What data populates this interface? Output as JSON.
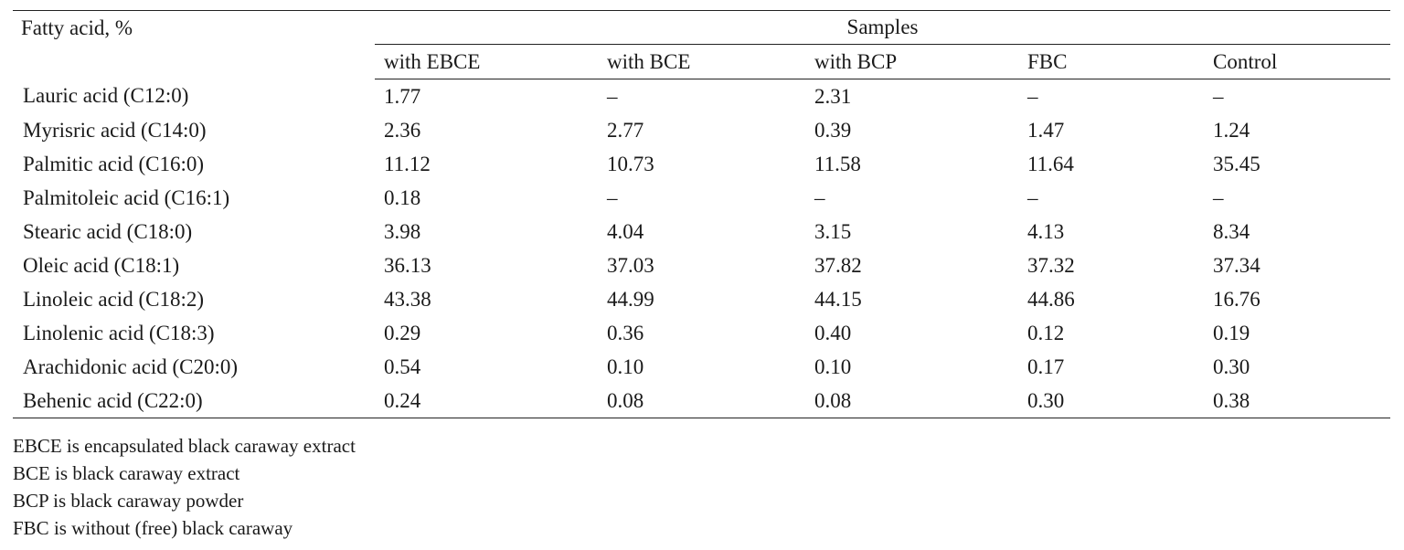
{
  "table": {
    "corner_header": "Fatty acid, %",
    "group_header": "Samples",
    "columns": [
      "with EBCE",
      "with BCE",
      "with BCP",
      "FBC",
      "Control"
    ],
    "rows": [
      {
        "name": "Lauric acid (C12:0)",
        "values": [
          "1.77",
          "–",
          "2.31",
          "–",
          "–"
        ]
      },
      {
        "name": "Myrisric acid (C14:0)",
        "values": [
          "2.36",
          "2.77",
          "0.39",
          "1.47",
          "1.24"
        ]
      },
      {
        "name": "Palmitic acid (C16:0)",
        "values": [
          "11.12",
          "10.73",
          "11.58",
          "11.64",
          "35.45"
        ]
      },
      {
        "name": "Palmitoleic acid (C16:1)",
        "values": [
          "0.18",
          "–",
          "–",
          "–",
          "–"
        ]
      },
      {
        "name": "Stearic acid (C18:0)",
        "values": [
          "3.98",
          "4.04",
          "3.15",
          "4.13",
          "8.34"
        ]
      },
      {
        "name": "Oleic acid (C18:1)",
        "values": [
          "36.13",
          "37.03",
          "37.82",
          "37.32",
          "37.34"
        ]
      },
      {
        "name": "Linoleic acid (C18:2)",
        "values": [
          "43.38",
          "44.99",
          "44.15",
          "44.86",
          "16.76"
        ]
      },
      {
        "name": "Linolenic acid (C18:3)",
        "values": [
          "0.29",
          "0.36",
          "0.40",
          "0.12",
          "0.19"
        ]
      },
      {
        "name": "Arachidonic acid (C20:0)",
        "values": [
          "0.54",
          "0.10",
          "0.10",
          "0.17",
          "0.30"
        ]
      },
      {
        "name": "Behenic acid (C22:0)",
        "values": [
          "0.24",
          "0.08",
          "0.08",
          "0.30",
          "0.38"
        ]
      }
    ]
  },
  "notes": [
    "EBCE is encapsulated black caraway extract",
    "BCE is black caraway extract",
    "BCP is black caraway powder",
    "FBC is without (free) black caraway"
  ]
}
